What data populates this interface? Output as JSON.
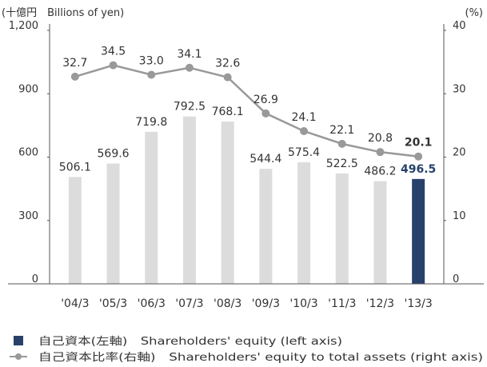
{
  "chart_data": {
    "type": "bar_line",
    "y_label": "(十億円　Billions of yen)",
    "y2_label": "(%)",
    "categories": [
      "'04/3",
      "'05/3",
      "'06/3",
      "'07/3",
      "'08/3",
      "'09/3",
      "'10/3",
      "'11/3",
      "'12/3",
      "'13/3"
    ],
    "series": [
      {
        "name": "自己資本(左軸)　Shareholders' equity (left axis)",
        "type": "bar",
        "color": "#27416b",
        "colors": [
          "#dcdcdc",
          "#dcdcdc",
          "#dcdcdc",
          "#dcdcdc",
          "#dcdcdc",
          "#dcdcdc",
          "#dcdcdc",
          "#dcdcdc",
          "#dcdcdc",
          "#27416b"
        ],
        "values": [
          506.1,
          569.6,
          719.8,
          792.5,
          768.1,
          544.4,
          575.4,
          522.5,
          486.2,
          496.5
        ]
      },
      {
        "name": "自己資本比率(右軸)　Shareholders' equity to total assets (right axis)",
        "type": "line",
        "axis": "y2",
        "color": "#999999",
        "values": [
          32.7,
          34.5,
          33.0,
          34.1,
          32.6,
          26.9,
          24.1,
          22.1,
          20.8,
          20.1
        ],
        "value_labels": [
          "32.7",
          "34.5",
          "33.0",
          "34.1",
          "32.6",
          "26.9",
          "24.1",
          "22.1",
          "20.8",
          "20.1"
        ]
      }
    ],
    "ylim": [
      0,
      1200
    ],
    "yticks": [
      0,
      300,
      600,
      900,
      {
        "value": 1200,
        "label": "1,200"
      }
    ],
    "y2lim": [
      0,
      40
    ],
    "y2ticks": [
      0,
      10,
      20,
      30,
      40
    ]
  }
}
